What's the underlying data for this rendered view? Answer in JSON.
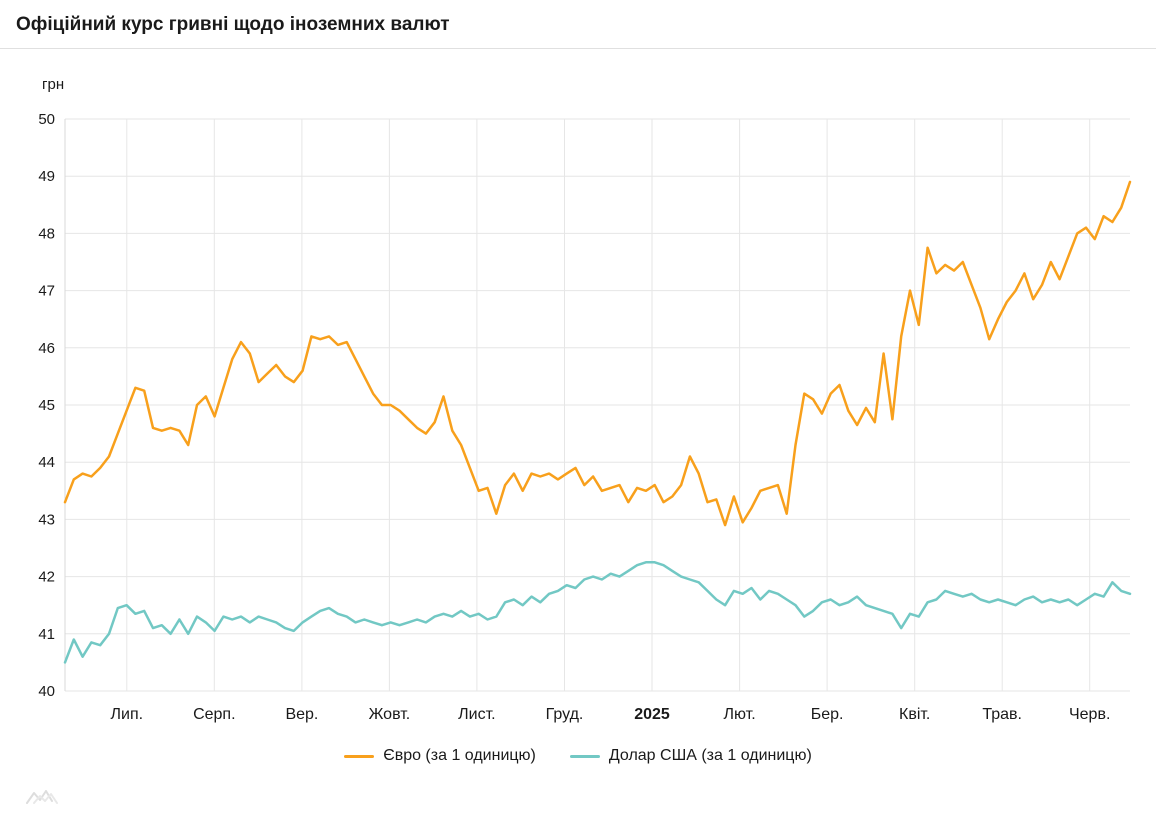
{
  "header": {
    "title": "Офіційний курс гривні щодо іноземних валют"
  },
  "chart_data": {
    "type": "line",
    "title": "Офіційний курс гривні щодо іноземних валют",
    "xlabel": "",
    "ylabel": "грн",
    "ylim": [
      40,
      50
    ],
    "y_tick_step": 1,
    "grid": true,
    "legend_position": "bottom",
    "x_ticks": [
      {
        "label": "Лип.",
        "bold": false
      },
      {
        "label": "Серп.",
        "bold": false
      },
      {
        "label": "Вер.",
        "bold": false
      },
      {
        "label": "Жовт.",
        "bold": false
      },
      {
        "label": "Лист.",
        "bold": false
      },
      {
        "label": "Груд.",
        "bold": false
      },
      {
        "label": "2025",
        "bold": true
      },
      {
        "label": "Лют.",
        "bold": false
      },
      {
        "label": "Бер.",
        "bold": false
      },
      {
        "label": "Квіт.",
        "bold": false
      },
      {
        "label": "Трав.",
        "bold": false
      },
      {
        "label": "Черв.",
        "bold": false
      }
    ],
    "series": [
      {
        "name": "Євро (за 1 одиницю)",
        "color": "#F8A01C",
        "values": [
          43.3,
          43.7,
          43.8,
          43.75,
          43.9,
          44.1,
          44.5,
          44.9,
          45.3,
          45.25,
          44.6,
          44.55,
          44.6,
          44.55,
          44.3,
          45.0,
          45.15,
          44.8,
          45.3,
          45.8,
          46.1,
          45.9,
          45.4,
          45.55,
          45.7,
          45.5,
          45.4,
          45.6,
          46.2,
          46.15,
          46.2,
          46.05,
          46.1,
          45.8,
          45.5,
          45.2,
          45.0,
          45.0,
          44.9,
          44.75,
          44.6,
          44.5,
          44.7,
          45.15,
          44.55,
          44.3,
          43.9,
          43.5,
          43.55,
          43.1,
          43.6,
          43.8,
          43.5,
          43.8,
          43.75,
          43.8,
          43.7,
          43.8,
          43.9,
          43.6,
          43.75,
          43.5,
          43.55,
          43.6,
          43.3,
          43.55,
          43.5,
          43.6,
          43.3,
          43.4,
          43.6,
          44.1,
          43.8,
          43.3,
          43.35,
          42.9,
          43.4,
          42.95,
          43.2,
          43.5,
          43.55,
          43.6,
          43.1,
          44.3,
          45.2,
          45.1,
          44.85,
          45.2,
          45.35,
          44.9,
          44.65,
          44.95,
          44.7,
          45.9,
          44.75,
          46.2,
          47.0,
          46.4,
          47.75,
          47.3,
          47.45,
          47.35,
          47.5,
          47.1,
          46.7,
          46.15,
          46.5,
          46.8,
          47.0,
          47.3,
          46.85,
          47.1,
          47.5,
          47.2,
          47.6,
          48.0,
          48.1,
          47.9,
          48.3,
          48.2,
          48.45,
          48.9
        ]
      },
      {
        "name": "Долар США (за 1 одиницю)",
        "color": "#72C8C4",
        "values": [
          40.5,
          40.9,
          40.6,
          40.85,
          40.8,
          41.0,
          41.45,
          41.5,
          41.35,
          41.4,
          41.1,
          41.15,
          41.0,
          41.25,
          41.0,
          41.3,
          41.2,
          41.05,
          41.3,
          41.25,
          41.3,
          41.2,
          41.3,
          41.25,
          41.2,
          41.1,
          41.05,
          41.2,
          41.3,
          41.4,
          41.45,
          41.35,
          41.3,
          41.2,
          41.25,
          41.2,
          41.15,
          41.2,
          41.15,
          41.2,
          41.25,
          41.2,
          41.3,
          41.35,
          41.3,
          41.4,
          41.3,
          41.35,
          41.25,
          41.3,
          41.55,
          41.6,
          41.5,
          41.65,
          41.55,
          41.7,
          41.75,
          41.85,
          41.8,
          41.95,
          42.0,
          41.95,
          42.05,
          42.0,
          42.1,
          42.2,
          42.25,
          42.25,
          42.2,
          42.1,
          42.0,
          41.95,
          41.9,
          41.75,
          41.6,
          41.5,
          41.75,
          41.7,
          41.8,
          41.6,
          41.75,
          41.7,
          41.6,
          41.5,
          41.3,
          41.4,
          41.55,
          41.6,
          41.5,
          41.55,
          41.65,
          41.5,
          41.45,
          41.4,
          41.35,
          41.1,
          41.35,
          41.3,
          41.55,
          41.6,
          41.75,
          41.7,
          41.65,
          41.7,
          41.6,
          41.55,
          41.6,
          41.55,
          41.5,
          41.6,
          41.65,
          41.55,
          41.6,
          41.55,
          41.6,
          41.5,
          41.6,
          41.7,
          41.65,
          41.9,
          41.75,
          41.7
        ]
      }
    ]
  }
}
